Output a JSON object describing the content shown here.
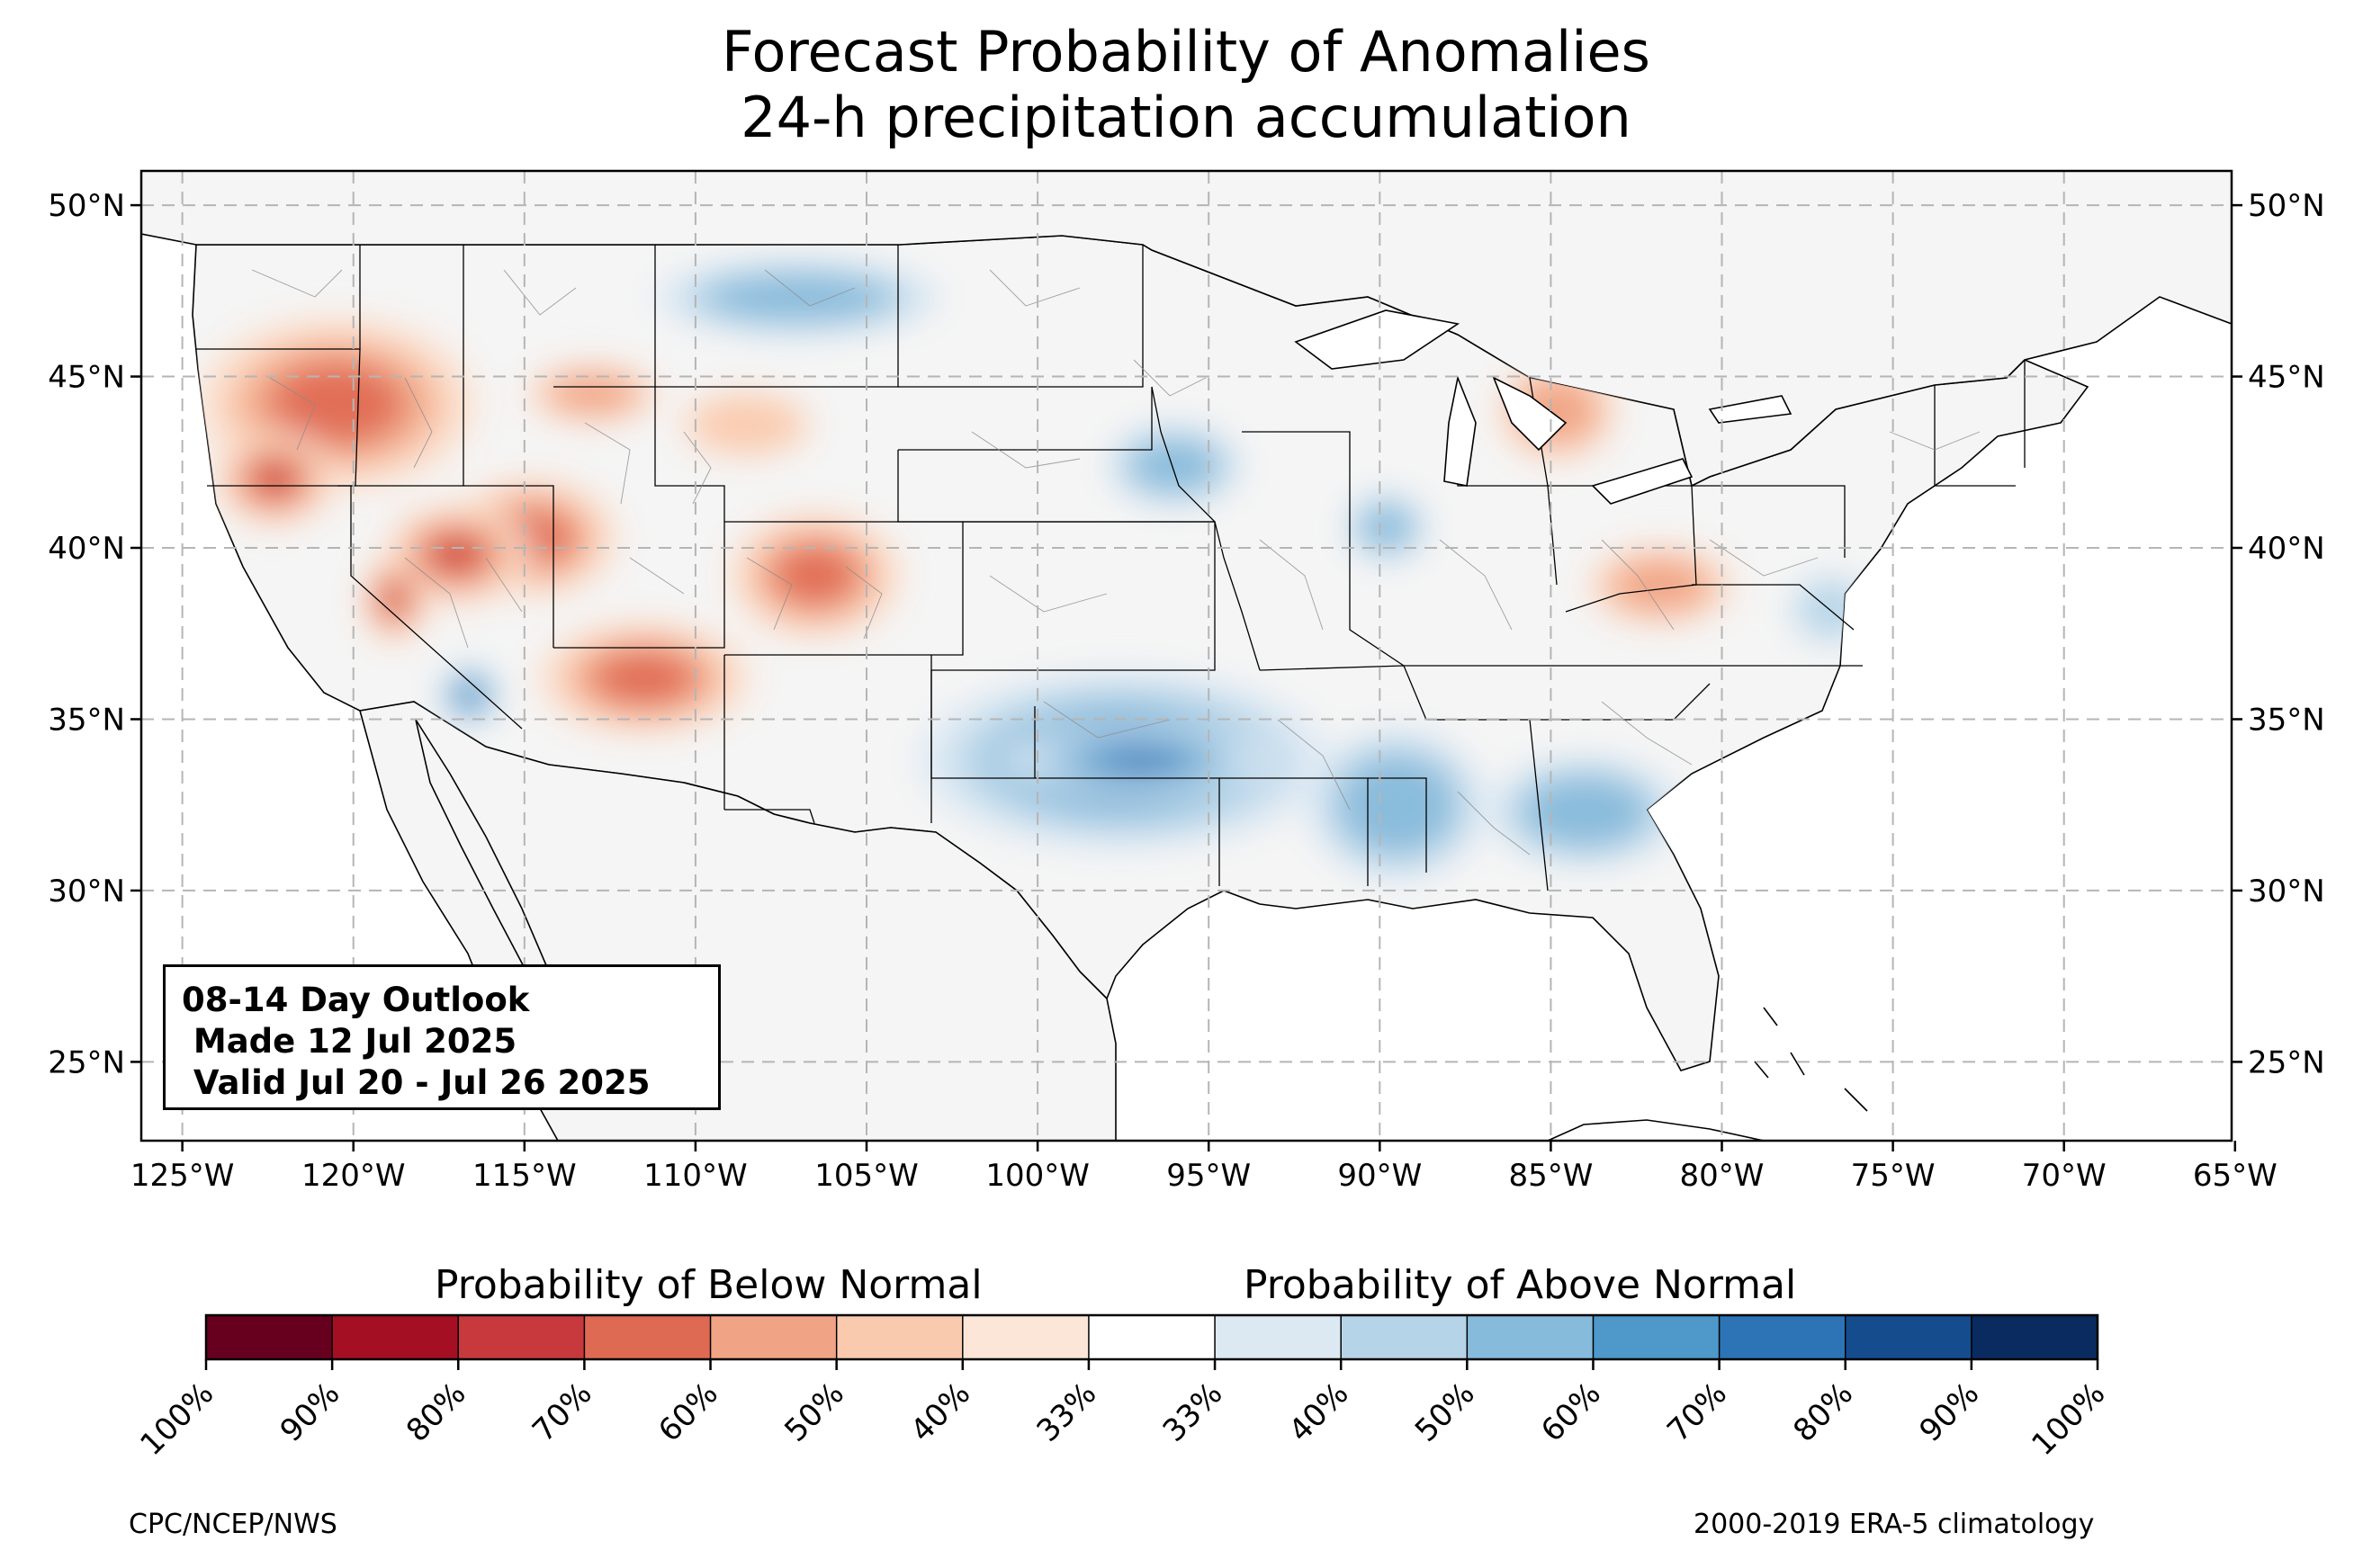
{
  "title_line1": "Forecast Probability of Anomalies",
  "title_line2": "24-h precipitation accumulation",
  "outlook": {
    "line1": "08-14 Day Outlook",
    "line2": " Made 12 Jul 2025",
    "line3": " Valid Jul 20 - Jul 26 2025"
  },
  "colorbar": {
    "below_label": "Probability of Below Normal",
    "above_label": "Probability of Above Normal",
    "ticks": [
      "100%",
      "90%",
      "80%",
      "70%",
      "60%",
      "50%",
      "40%",
      "33%",
      "33%",
      "40%",
      "50%",
      "60%",
      "70%",
      "80%",
      "90%",
      "100%"
    ],
    "colors": [
      "#67001f",
      "#a50f24",
      "#c8393d",
      "#df6a54",
      "#f0a385",
      "#f9caad",
      "#fbe6d8",
      "#ffffff",
      "#dce9f3",
      "#b6d4e8",
      "#87bbdb",
      "#4e98ca",
      "#2c74b5",
      "#154c8e",
      "#0a2b5f"
    ]
  },
  "axes": {
    "lat_labels": [
      "50°N",
      "45°N",
      "40°N",
      "35°N",
      "30°N",
      "25°N"
    ],
    "lon_labels": [
      "125°W",
      "120°W",
      "115°W",
      "110°W",
      "105°W",
      "100°W",
      "95°W",
      "90°W",
      "85°W",
      "80°W",
      "75°W",
      "70°W",
      "65°W"
    ],
    "lat_values": [
      50,
      45,
      40,
      35,
      30,
      25
    ],
    "lon_values": [
      -125,
      -120,
      -115,
      -110,
      -105,
      -100,
      -95,
      -90,
      -85,
      -80,
      -75,
      -70,
      -65
    ],
    "lon_range": [
      -126.2,
      -65.1
    ],
    "lat_range": [
      22.7,
      51.0
    ]
  },
  "credits": {
    "left": "CPC/NCEP/NWS",
    "right": "2000-2019 ERA-5 climatology"
  },
  "anomaly_regions": [
    {
      "name": "pacific-northwest-dry",
      "category": "below",
      "level": 3,
      "lon": -120.5,
      "lat": 44.2,
      "rx": 4.2,
      "ry": 2.6
    },
    {
      "name": "northern-california-dry",
      "category": "below",
      "level": 4,
      "lon": -122.3,
      "lat": 42.0,
      "rx": 1.8,
      "ry": 1.4
    },
    {
      "name": "great-basin-dry",
      "category": "below",
      "level": 4,
      "lon": -117.0,
      "lat": 39.8,
      "rx": 2.2,
      "ry": 1.5
    },
    {
      "name": "sierra-dry",
      "category": "below",
      "level": 4,
      "lon": -118.8,
      "lat": 38.5,
      "rx": 1.0,
      "ry": 1.3
    },
    {
      "name": "nevada-utah-dry",
      "category": "below",
      "level": 3,
      "lon": -114.8,
      "lat": 40.3,
      "rx": 2.6,
      "ry": 1.8
    },
    {
      "name": "four-corners-dry",
      "category": "below",
      "level": 3,
      "lon": -111.5,
      "lat": 36.2,
      "rx": 3.2,
      "ry": 1.7
    },
    {
      "name": "colorado-dry",
      "category": "below",
      "level": 3,
      "lon": -106.5,
      "lat": 39.2,
      "rx": 2.6,
      "ry": 1.9
    },
    {
      "name": "wyoming-dry",
      "category": "below",
      "level": 1,
      "lon": -108.5,
      "lat": 43.6,
      "rx": 2.0,
      "ry": 1.0
    },
    {
      "name": "montana-dry",
      "category": "below",
      "level": 2,
      "lon": -113.0,
      "lat": 44.5,
      "rx": 2.0,
      "ry": 0.9
    },
    {
      "name": "michigan-dry",
      "category": "below",
      "level": 2,
      "lon": -84.8,
      "lat": 44.0,
      "rx": 1.8,
      "ry": 1.5
    },
    {
      "name": "ohio-valley-dry",
      "category": "below",
      "level": 2,
      "lon": -81.8,
      "lat": 38.9,
      "rx": 2.2,
      "ry": 1.2
    },
    {
      "name": "southern-plains-wet",
      "category": "above",
      "level": 3,
      "lon": -97.5,
      "lat": 33.8,
      "rx": 6.0,
      "ry": 2.6
    },
    {
      "name": "red-river-wet",
      "category": "above",
      "level": 4,
      "lon": -97.0,
      "lat": 33.8,
      "rx": 4.0,
      "ry": 1.0
    },
    {
      "name": "lower-mississippi-wet",
      "category": "above",
      "level": 2,
      "lon": -89.5,
      "lat": 32.5,
      "rx": 2.6,
      "ry": 2.2
    },
    {
      "name": "southeast-wet",
      "category": "above",
      "level": 2,
      "lon": -84.0,
      "lat": 32.3,
      "rx": 2.8,
      "ry": 1.6
    },
    {
      "name": "missouri-valley-wet",
      "category": "above",
      "level": 2,
      "lon": -96.0,
      "lat": 42.4,
      "rx": 2.0,
      "ry": 1.2
    },
    {
      "name": "upper-midwest-wet",
      "category": "above",
      "level": 2,
      "lon": -89.8,
      "lat": 40.6,
      "rx": 1.2,
      "ry": 1.0
    },
    {
      "name": "northern-plains-wet",
      "category": "above",
      "level": 2,
      "lon": -107.0,
      "lat": 47.3,
      "rx": 4.2,
      "ry": 1.1
    },
    {
      "name": "southern-california-wet",
      "category": "above",
      "level": 4,
      "lon": -116.6,
      "lat": 35.7,
      "rx": 0.9,
      "ry": 0.9
    },
    {
      "name": "mid-atlantic-wet",
      "category": "above",
      "level": 1,
      "lon": -76.8,
      "lat": 38.2,
      "rx": 1.2,
      "ry": 1.0
    }
  ]
}
